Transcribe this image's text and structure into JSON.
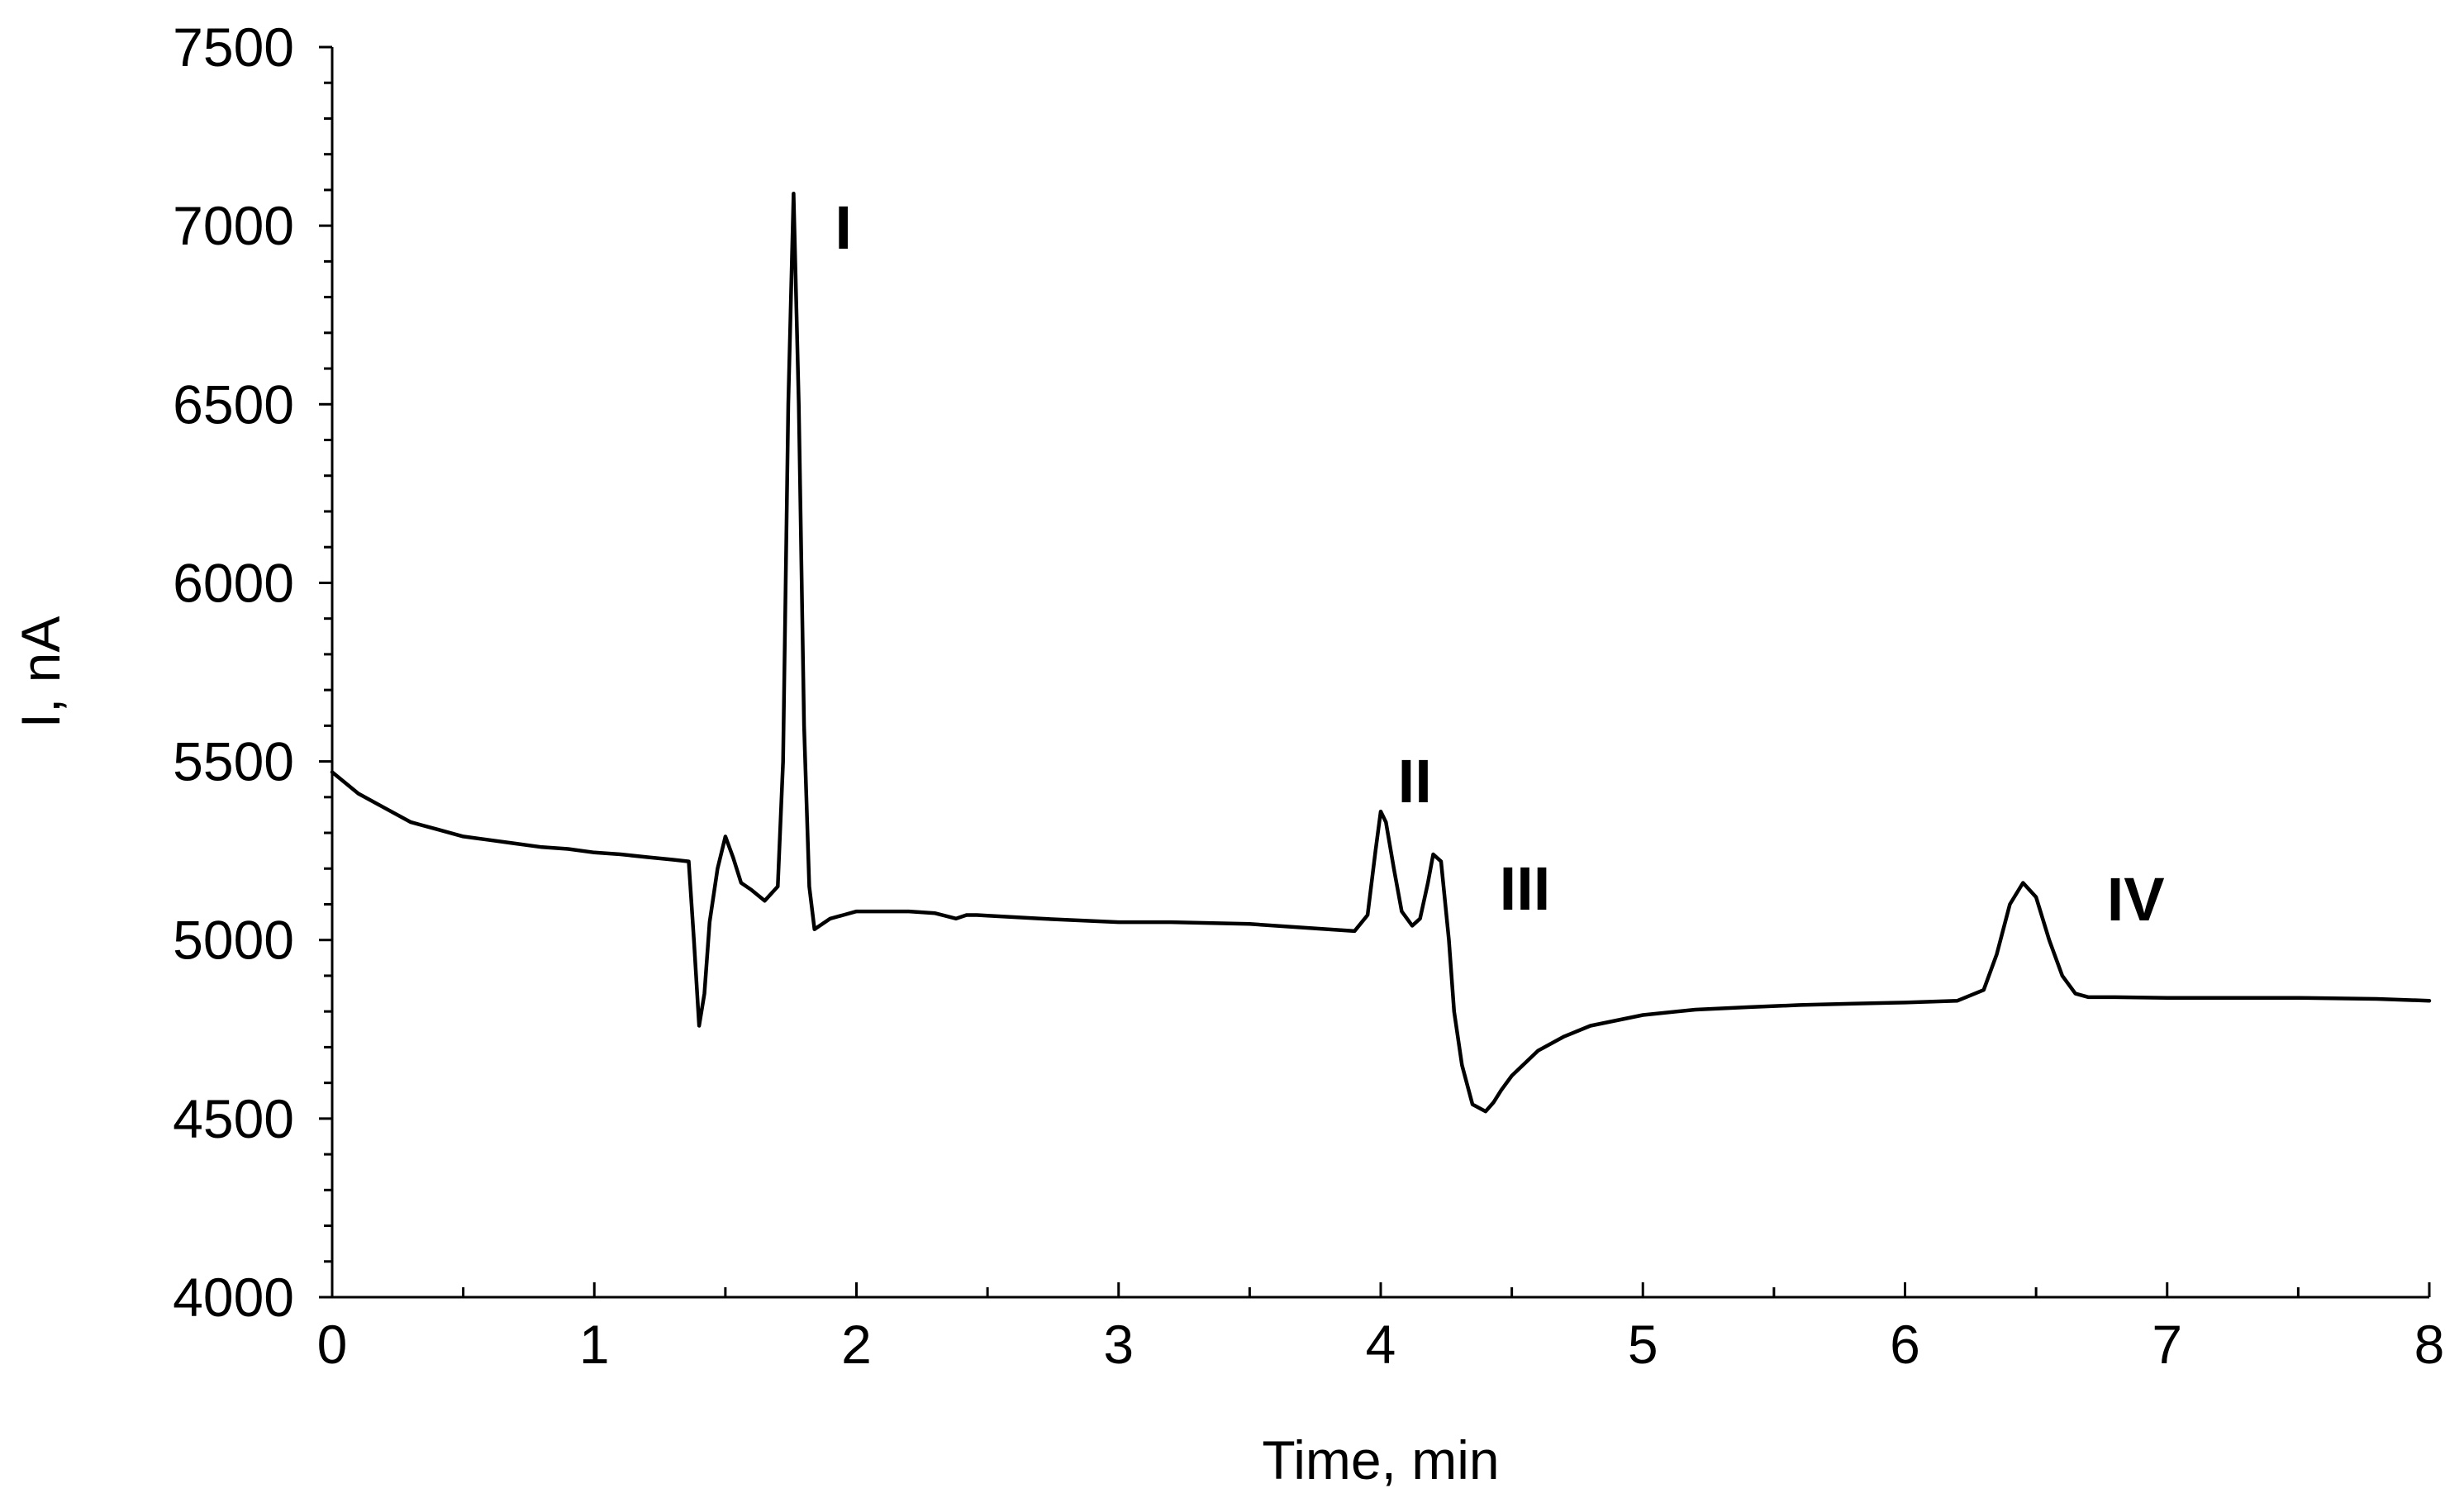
{
  "chart_data": {
    "type": "line",
    "title": "",
    "xlabel": "Time, min",
    "ylabel": "I, nA",
    "xlim": [
      0,
      8
    ],
    "ylim": [
      4000,
      7500
    ],
    "x_ticks": [
      0,
      1,
      2,
      3,
      4,
      5,
      6,
      7,
      8
    ],
    "y_ticks": [
      4000,
      4500,
      5000,
      5500,
      6000,
      6500,
      7000,
      7500
    ],
    "grid": false,
    "legend": "none",
    "line_color": "#000000",
    "series": [
      {
        "x": [
          0,
          0.1,
          0.2,
          0.3,
          0.4,
          0.5,
          0.6,
          0.7,
          0.8,
          0.9,
          1.0,
          1.1,
          1.2,
          1.3,
          1.36,
          1.38,
          1.4,
          1.42,
          1.44,
          1.47,
          1.5,
          1.53,
          1.56,
          1.6,
          1.65,
          1.7,
          1.72,
          1.74,
          1.76,
          1.78,
          1.8,
          1.82,
          1.84,
          1.86,
          1.9,
          1.95,
          2.0,
          2.1,
          2.2,
          2.3,
          2.38,
          2.42,
          2.46,
          2.5,
          2.7,
          3.0,
          3.2,
          3.5,
          3.8,
          3.9,
          3.95,
          3.98,
          4.0,
          4.02,
          4.05,
          4.08,
          4.12,
          4.15,
          4.18,
          4.2,
          4.23,
          4.26,
          4.28,
          4.31,
          4.35,
          4.4,
          4.43,
          4.46,
          4.5,
          4.6,
          4.7,
          4.8,
          5.0,
          5.2,
          5.4,
          5.6,
          5.8,
          6.0,
          6.2,
          6.3,
          6.35,
          6.4,
          6.45,
          6.5,
          6.55,
          6.6,
          6.65,
          6.7,
          6.8,
          7.0,
          7.2,
          7.5,
          7.8,
          8.0
        ],
        "y": [
          5470,
          5410,
          5370,
          5330,
          5310,
          5290,
          5280,
          5270,
          5260,
          5255,
          5245,
          5240,
          5232,
          5225,
          5220,
          5000,
          4760,
          4850,
          5050,
          5200,
          5290,
          5230,
          5160,
          5140,
          5110,
          5150,
          5500,
          6500,
          7090,
          6500,
          5600,
          5150,
          5030,
          5040,
          5060,
          5070,
          5080,
          5080,
          5080,
          5075,
          5060,
          5070,
          5070,
          5068,
          5060,
          5050,
          5050,
          5045,
          5030,
          5025,
          5070,
          5250,
          5360,
          5330,
          5200,
          5080,
          5040,
          5060,
          5160,
          5240,
          5220,
          5000,
          4800,
          4650,
          4540,
          4520,
          4545,
          4580,
          4620,
          4690,
          4730,
          4760,
          4790,
          4805,
          4812,
          4818,
          4822,
          4825,
          4830,
          4860,
          4960,
          5100,
          5160,
          5120,
          5000,
          4900,
          4850,
          4840,
          4840,
          4838,
          4838,
          4838,
          4835,
          4830
        ]
      }
    ],
    "annotations": [
      {
        "text": "I",
        "x": 1.95,
        "y": 7000
      },
      {
        "text": "II",
        "x": 4.13,
        "y": 5450
      },
      {
        "text": "III",
        "x": 4.55,
        "y": 5150
      },
      {
        "text": "IV",
        "x": 6.88,
        "y": 5120
      }
    ]
  }
}
